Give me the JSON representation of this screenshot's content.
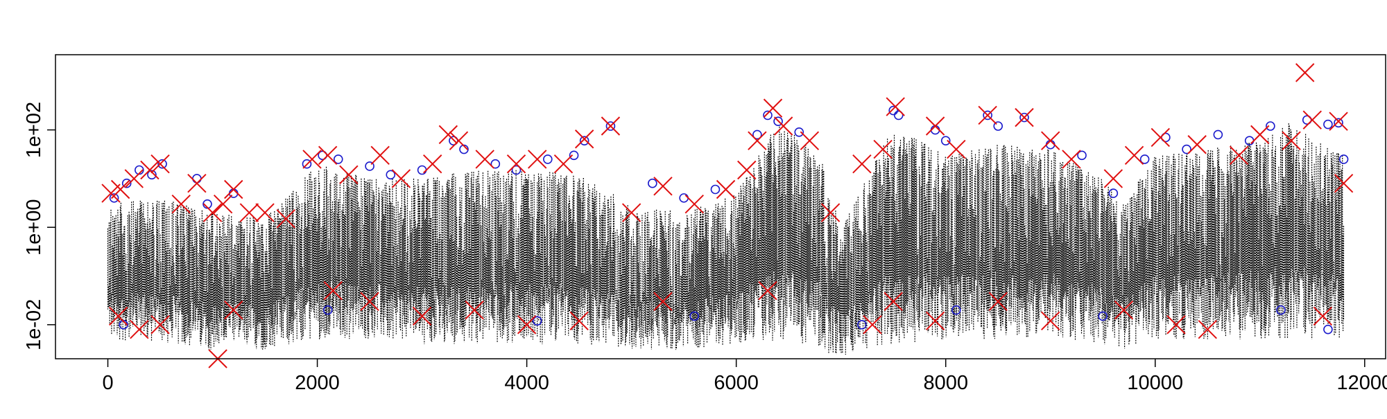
{
  "chart_data": {
    "type": "scatter",
    "title": "",
    "xlabel": "",
    "ylabel": "",
    "x_ticks": [
      "0",
      "2000",
      "4000",
      "6000",
      "8000",
      "10000",
      "12000"
    ],
    "y_ticks": [
      "1e-02",
      "1e+00",
      "1e+02"
    ],
    "xlim": [
      -500,
      12200
    ],
    "ylim": [
      0.002,
      3500
    ],
    "y_scale": "log",
    "grid": false,
    "legend": "none",
    "colors": {
      "dotted_series": "#000000",
      "circle_markers": "#1a1acc",
      "cross_markers": "#e01010"
    },
    "series": [
      {
        "marker": "dotted-vertical-lines",
        "x_range": [
          0,
          11800
        ],
        "envelope": [
          {
            "x": 0,
            "low": 0.005,
            "high": 3
          },
          {
            "x": 500,
            "low": 0.004,
            "high": 4
          },
          {
            "x": 1000,
            "low": 0.003,
            "high": 2
          },
          {
            "x": 1500,
            "low": 0.003,
            "high": 1.5
          },
          {
            "x": 2000,
            "low": 0.005,
            "high": 20
          },
          {
            "x": 2500,
            "low": 0.005,
            "high": 10
          },
          {
            "x": 3000,
            "low": 0.004,
            "high": 10
          },
          {
            "x": 3500,
            "low": 0.004,
            "high": 15
          },
          {
            "x": 4000,
            "low": 0.004,
            "high": 15
          },
          {
            "x": 4500,
            "low": 0.004,
            "high": 12
          },
          {
            "x": 5000,
            "low": 0.003,
            "high": 3
          },
          {
            "x": 5500,
            "low": 0.003,
            "high": 2
          },
          {
            "x": 6000,
            "low": 0.004,
            "high": 5
          },
          {
            "x": 6400,
            "low": 0.004,
            "high": 150
          },
          {
            "x": 6800,
            "low": 0.003,
            "high": 30
          },
          {
            "x": 7000,
            "low": 0.002,
            "high": 1
          },
          {
            "x": 7500,
            "low": 0.004,
            "high": 120
          },
          {
            "x": 8000,
            "low": 0.005,
            "high": 30
          },
          {
            "x": 8500,
            "low": 0.005,
            "high": 50
          },
          {
            "x": 9000,
            "low": 0.005,
            "high": 40
          },
          {
            "x": 9500,
            "low": 0.004,
            "high": 10
          },
          {
            "x": 9700,
            "low": 0.003,
            "high": 3
          },
          {
            "x": 10000,
            "low": 0.005,
            "high": 30
          },
          {
            "x": 10500,
            "low": 0.005,
            "high": 40
          },
          {
            "x": 11000,
            "low": 0.005,
            "high": 60
          },
          {
            "x": 11300,
            "low": 0.005,
            "high": 150
          },
          {
            "x": 11800,
            "low": 0.005,
            "high": 30
          }
        ]
      },
      {
        "marker": "circle",
        "points": [
          [
            60,
            4
          ],
          [
            180,
            8
          ],
          [
            300,
            15
          ],
          [
            420,
            12
          ],
          [
            520,
            20
          ],
          [
            850,
            10
          ],
          [
            950,
            3
          ],
          [
            1200,
            5
          ],
          [
            1900,
            20
          ],
          [
            2050,
            30
          ],
          [
            2200,
            25
          ],
          [
            2500,
            18
          ],
          [
            2700,
            12
          ],
          [
            3000,
            15
          ],
          [
            3300,
            60
          ],
          [
            3400,
            40
          ],
          [
            3700,
            20
          ],
          [
            3900,
            15
          ],
          [
            4200,
            25
          ],
          [
            4450,
            30
          ],
          [
            4550,
            60
          ],
          [
            4800,
            120
          ],
          [
            5200,
            8
          ],
          [
            5500,
            4
          ],
          [
            5800,
            6
          ],
          [
            6200,
            80
          ],
          [
            6300,
            200
          ],
          [
            6400,
            150
          ],
          [
            6600,
            90
          ],
          [
            7500,
            250
          ],
          [
            7550,
            200
          ],
          [
            7900,
            100
          ],
          [
            8000,
            60
          ],
          [
            8400,
            200
          ],
          [
            8500,
            120
          ],
          [
            8750,
            180
          ],
          [
            9000,
            50
          ],
          [
            9300,
            30
          ],
          [
            9600,
            5
          ],
          [
            9900,
            25
          ],
          [
            10100,
            70
          ],
          [
            10300,
            40
          ],
          [
            10600,
            80
          ],
          [
            10900,
            60
          ],
          [
            11100,
            120
          ],
          [
            11450,
            160
          ],
          [
            11650,
            130
          ],
          [
            11750,
            140
          ],
          [
            11800,
            25
          ],
          [
            150,
            0.01
          ],
          [
            2100,
            0.02
          ],
          [
            4100,
            0.012
          ],
          [
            5600,
            0.015
          ],
          [
            7200,
            0.01
          ],
          [
            8100,
            0.02
          ],
          [
            9500,
            0.015
          ],
          [
            11200,
            0.02
          ],
          [
            11650,
            0.008
          ]
        ]
      },
      {
        "marker": "cross",
        "points": [
          [
            30,
            5
          ],
          [
            120,
            6
          ],
          [
            250,
            10
          ],
          [
            400,
            15
          ],
          [
            500,
            20
          ],
          [
            700,
            3
          ],
          [
            850,
            8
          ],
          [
            1000,
            2
          ],
          [
            1100,
            3
          ],
          [
            1200,
            6
          ],
          [
            1350,
            2
          ],
          [
            1500,
            2
          ],
          [
            1700,
            1.5
          ],
          [
            1950,
            25
          ],
          [
            2100,
            30
          ],
          [
            2300,
            12
          ],
          [
            2600,
            30
          ],
          [
            2800,
            10
          ],
          [
            3100,
            20
          ],
          [
            3250,
            80
          ],
          [
            3350,
            60
          ],
          [
            3600,
            25
          ],
          [
            3900,
            20
          ],
          [
            4100,
            25
          ],
          [
            4350,
            20
          ],
          [
            4550,
            65
          ],
          [
            4800,
            120
          ],
          [
            5000,
            2
          ],
          [
            5300,
            7
          ],
          [
            5600,
            3
          ],
          [
            5900,
            6
          ],
          [
            6100,
            15
          ],
          [
            6200,
            60
          ],
          [
            6350,
            280
          ],
          [
            6450,
            120
          ],
          [
            6700,
            60
          ],
          [
            6900,
            2
          ],
          [
            7200,
            20
          ],
          [
            7400,
            40
          ],
          [
            7520,
            300
          ],
          [
            7900,
            120
          ],
          [
            8100,
            40
          ],
          [
            8400,
            200
          ],
          [
            8750,
            180
          ],
          [
            9000,
            60
          ],
          [
            9200,
            25
          ],
          [
            9600,
            10
          ],
          [
            9800,
            30
          ],
          [
            10050,
            70
          ],
          [
            10400,
            50
          ],
          [
            10800,
            30
          ],
          [
            11000,
            80
          ],
          [
            11300,
            60
          ],
          [
            11430,
            1500
          ],
          [
            11500,
            160
          ],
          [
            11750,
            150
          ],
          [
            11800,
            8
          ],
          [
            100,
            0.015
          ],
          [
            300,
            0.008
          ],
          [
            500,
            0.01
          ],
          [
            1050,
            0.002
          ],
          [
            1200,
            0.02
          ],
          [
            2150,
            0.05
          ],
          [
            2500,
            0.03
          ],
          [
            3000,
            0.015
          ],
          [
            3500,
            0.02
          ],
          [
            4000,
            0.01
          ],
          [
            4500,
            0.012
          ],
          [
            5300,
            0.03
          ],
          [
            6300,
            0.05
          ],
          [
            7300,
            0.01
          ],
          [
            7500,
            0.03
          ],
          [
            7900,
            0.012
          ],
          [
            8500,
            0.03
          ],
          [
            9000,
            0.012
          ],
          [
            9700,
            0.02
          ],
          [
            10200,
            0.01
          ],
          [
            10500,
            0.008
          ],
          [
            11600,
            0.015
          ]
        ]
      }
    ]
  }
}
